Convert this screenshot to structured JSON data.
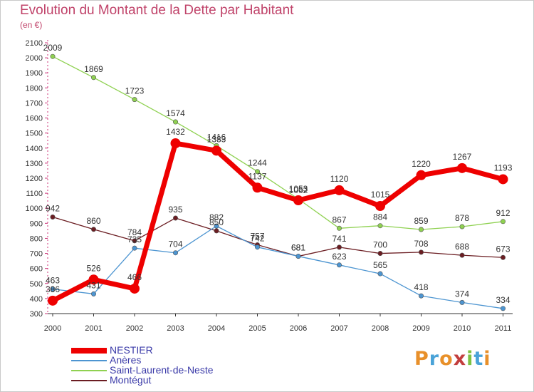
{
  "title": "Evolution du Montant de la Dette par Habitant",
  "unit_label": "(en €)",
  "logo_text": "Proxiti",
  "chart_data": {
    "type": "line",
    "title": "Evolution du Montant de la Dette par Habitant",
    "subtitle": "(en €)",
    "xlabel": "",
    "ylabel": "",
    "categories": [
      "2000",
      "2001",
      "2002",
      "2003",
      "2004",
      "2005",
      "2006",
      "2007",
      "2008",
      "2009",
      "2010",
      "2011"
    ],
    "ylim": [
      300,
      2100
    ],
    "yticks": [
      300,
      400,
      500,
      600,
      700,
      800,
      900,
      1000,
      1100,
      1200,
      1300,
      1400,
      1500,
      1600,
      1700,
      1800,
      1900,
      2000,
      2100
    ],
    "grid": false,
    "legend_position": "bottom-left",
    "series": [
      {
        "name": "Saint-Laurent-de-Neste",
        "color": "#8fd151",
        "values": [
          2009,
          1869,
          1723,
          1574,
          1416,
          1244,
          1062,
          867,
          884,
          859,
          878,
          912
        ]
      },
      {
        "name": "Montégut",
        "color": "#6b1d22",
        "values": [
          942,
          860,
          784,
          935,
          850,
          757,
          681,
          741,
          700,
          708,
          688,
          673
        ]
      },
      {
        "name": "Anères",
        "color": "#4d95d1",
        "values": [
          463,
          431,
          735,
          704,
          882,
          742,
          681,
          623,
          565,
          418,
          374,
          334
        ]
      },
      {
        "name": "NESTIER",
        "color": "#ee0000",
        "values": [
          386,
          526,
          466,
          1432,
          1383,
          1137,
          1053,
          1120,
          1015,
          1220,
          1267,
          1193
        ]
      }
    ]
  },
  "legend": [
    {
      "label": "NESTIER",
      "color": "#ee0000"
    },
    {
      "label": "Anères",
      "color": "#4d95d1"
    },
    {
      "label": "Saint-Laurent-de-Neste",
      "color": "#8fd151"
    },
    {
      "label": "Montégut",
      "color": "#6b1d22"
    }
  ]
}
